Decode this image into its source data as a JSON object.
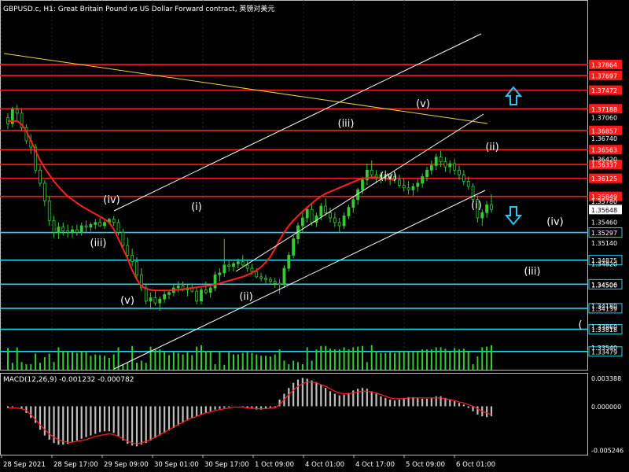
{
  "header": {
    "title": "GBPUSD.c, H1:  Great Britain Pound vs US Dollar Forward contract, 英镑对美元"
  },
  "colors": {
    "background": "#000000",
    "grid": "#3a3a3a",
    "candle": "#33cc33",
    "ma": "#ff2020",
    "resistance": "#ff1a1a",
    "support": "#1fd6f0",
    "channel": "#ffffff",
    "trendline": "#e8d24a",
    "histogram": "#bfbfbf",
    "signal": "#ff2020",
    "volume": "#33cc33",
    "arrow": "#2ec4ea",
    "axis_text": "#ffffff"
  },
  "chart_data": {
    "type": "candlestick",
    "symbol": "GBPUSD.c",
    "timeframe": "H1",
    "price_range": [
      1.332,
      1.3885
    ],
    "price_ticks": [
      "1.37060",
      "1.36740",
      "1.36420",
      "1.35780",
      "1.35460",
      "1.35140",
      "1.34820",
      "1.34500",
      "1.34180",
      "1.33860",
      "1.33540"
    ],
    "time_labels": [
      "28 Sep 2021",
      "28 Sep 17:00",
      "29 Sep 09:00",
      "30 Sep 01:00",
      "30 Sep 17:00",
      "1 Oct 09:00",
      "4 Oct 01:00",
      "4 Oct 17:00",
      "5 Oct 09:00",
      "6 Oct 01:00"
    ],
    "current_price": "1.35648",
    "resistance_levels": [
      {
        "price": 1.37864,
        "label": "1.37864"
      },
      {
        "price": 1.37697,
        "label": "1.37697"
      },
      {
        "price": 1.37472,
        "label": "1.37472"
      },
      {
        "price": 1.37188,
        "label": "1.37188"
      },
      {
        "price": 1.36857,
        "label": "1.36857"
      },
      {
        "price": 1.36563,
        "label": "1.36563"
      },
      {
        "price": 1.36337,
        "label": "1.36337"
      },
      {
        "price": 1.36125,
        "label": "1.36125"
      },
      {
        "price": 1.35849,
        "label": "1.35849"
      }
    ],
    "support_levels": [
      {
        "price": 1.35297,
        "label": "1.35297"
      },
      {
        "price": 1.34875,
        "label": "1.34875"
      },
      {
        "price": 1.34506,
        "label": "1.34506"
      },
      {
        "price": 1.34139,
        "label": "1.34139"
      },
      {
        "price": 1.33818,
        "label": "1.33818"
      },
      {
        "price": 1.33479,
        "label": "1.33479"
      }
    ],
    "wave_labels": [
      "(iv)",
      "(iii)",
      "(v)",
      "(i)",
      "(ii)",
      "(iii)",
      "(iv)",
      "(v)",
      "(ii)",
      "(i)",
      "(iv)",
      "(iii)",
      "("
    ],
    "candles": [
      [
        1.3705,
        1.3712,
        1.3688,
        1.3696
      ],
      [
        1.3696,
        1.3722,
        1.369,
        1.3718
      ],
      [
        1.3718,
        1.3725,
        1.37,
        1.3712
      ],
      [
        1.3712,
        1.3718,
        1.3685,
        1.369
      ],
      [
        1.369,
        1.3695,
        1.3665,
        1.367
      ],
      [
        1.367,
        1.368,
        1.365,
        1.366
      ],
      [
        1.366,
        1.3665,
        1.362,
        1.3625
      ],
      [
        1.3625,
        1.3632,
        1.36,
        1.3605
      ],
      [
        1.3605,
        1.361,
        1.357,
        1.3578
      ],
      [
        1.3578,
        1.3585,
        1.354,
        1.3548
      ],
      [
        1.3548,
        1.3555,
        1.3522,
        1.353
      ],
      [
        1.353,
        1.3545,
        1.352,
        1.3538
      ],
      [
        1.3538,
        1.3545,
        1.3525,
        1.3532
      ],
      [
        1.3532,
        1.3542,
        1.3522,
        1.353
      ],
      [
        1.353,
        1.354,
        1.3522,
        1.3534
      ],
      [
        1.3534,
        1.3542,
        1.3525,
        1.353
      ],
      [
        1.353,
        1.3545,
        1.3525,
        1.354
      ],
      [
        1.354,
        1.3548,
        1.353,
        1.3538
      ],
      [
        1.3538,
        1.3545,
        1.3532,
        1.3542
      ],
      [
        1.3542,
        1.355,
        1.3535,
        1.3545
      ],
      [
        1.3545,
        1.3552,
        1.3538,
        1.354
      ],
      [
        1.354,
        1.3548,
        1.3535,
        1.3545
      ],
      [
        1.3545,
        1.3552,
        1.3542,
        1.355
      ],
      [
        1.355,
        1.3555,
        1.354,
        1.3545
      ],
      [
        1.3545,
        1.355,
        1.3525,
        1.353
      ],
      [
        1.353,
        1.3535,
        1.3505,
        1.351
      ],
      [
        1.351,
        1.3522,
        1.349,
        1.3495
      ],
      [
        1.3495,
        1.3505,
        1.3478,
        1.3485
      ],
      [
        1.3485,
        1.3492,
        1.346,
        1.3465
      ],
      [
        1.3465,
        1.3475,
        1.344,
        1.3445
      ],
      [
        1.3445,
        1.3452,
        1.342,
        1.3425
      ],
      [
        1.3425,
        1.3438,
        1.3412,
        1.343
      ],
      [
        1.343,
        1.344,
        1.3418,
        1.3422
      ],
      [
        1.3422,
        1.3432,
        1.341,
        1.3428
      ],
      [
        1.3428,
        1.344,
        1.3422,
        1.3435
      ],
      [
        1.3435,
        1.3442,
        1.3428,
        1.3438
      ],
      [
        1.3438,
        1.345,
        1.3432,
        1.3445
      ],
      [
        1.3445,
        1.3455,
        1.3438,
        1.3448
      ],
      [
        1.3448,
        1.3455,
        1.344,
        1.3442
      ],
      [
        1.3442,
        1.345,
        1.3432,
        1.3445
      ],
      [
        1.3445,
        1.3452,
        1.3438,
        1.344
      ],
      [
        1.344,
        1.3446,
        1.342,
        1.3425
      ],
      [
        1.3425,
        1.3448,
        1.342,
        1.3442
      ],
      [
        1.3442,
        1.3455,
        1.3435,
        1.3438
      ],
      [
        1.3438,
        1.345,
        1.343,
        1.3445
      ],
      [
        1.3445,
        1.347,
        1.344,
        1.3465
      ],
      [
        1.3465,
        1.3475,
        1.3455,
        1.3468
      ],
      [
        1.3468,
        1.352,
        1.3462,
        1.348
      ],
      [
        1.348,
        1.3488,
        1.347,
        1.3478
      ],
      [
        1.3478,
        1.3485,
        1.347,
        1.3482
      ],
      [
        1.3482,
        1.349,
        1.3475,
        1.3485
      ],
      [
        1.3485,
        1.3495,
        1.3478,
        1.348
      ],
      [
        1.348,
        1.3488,
        1.347,
        1.3475
      ],
      [
        1.3475,
        1.3482,
        1.3465,
        1.347
      ],
      [
        1.347,
        1.3475,
        1.346,
        1.3462
      ],
      [
        1.3462,
        1.3468,
        1.3455,
        1.346
      ],
      [
        1.346,
        1.3465,
        1.3452,
        1.3458
      ],
      [
        1.3458,
        1.3462,
        1.345,
        1.3455
      ],
      [
        1.3455,
        1.346,
        1.3445,
        1.3452
      ],
      [
        1.3452,
        1.3458,
        1.3436,
        1.345
      ],
      [
        1.345,
        1.348,
        1.3445,
        1.3475
      ],
      [
        1.3475,
        1.35,
        1.347,
        1.3495
      ],
      [
        1.3495,
        1.3525,
        1.349,
        1.352
      ],
      [
        1.352,
        1.3545,
        1.3512,
        1.354
      ],
      [
        1.354,
        1.356,
        1.353,
        1.3552
      ],
      [
        1.3552,
        1.357,
        1.3545,
        1.3565
      ],
      [
        1.3565,
        1.3575,
        1.354,
        1.3545
      ],
      [
        1.3545,
        1.356,
        1.3538,
        1.3555
      ],
      [
        1.3555,
        1.3575,
        1.3548,
        1.357
      ],
      [
        1.357,
        1.3582,
        1.3555,
        1.356
      ],
      [
        1.356,
        1.3568,
        1.3545,
        1.3552
      ],
      [
        1.3552,
        1.356,
        1.3538,
        1.3545
      ],
      [
        1.3545,
        1.3552,
        1.353,
        1.354
      ],
      [
        1.354,
        1.356,
        1.3535,
        1.3555
      ],
      [
        1.3555,
        1.3572,
        1.355,
        1.3568
      ],
      [
        1.3568,
        1.3585,
        1.356,
        1.358
      ],
      [
        1.358,
        1.3598,
        1.3572,
        1.3595
      ],
      [
        1.3595,
        1.3615,
        1.3588,
        1.361
      ],
      [
        1.361,
        1.3635,
        1.3602,
        1.3625
      ],
      [
        1.3625,
        1.364,
        1.3612,
        1.3618
      ],
      [
        1.3618,
        1.3625,
        1.3605,
        1.3612
      ],
      [
        1.3612,
        1.3622,
        1.3605,
        1.3618
      ],
      [
        1.3618,
        1.3625,
        1.3608,
        1.3612
      ],
      [
        1.3612,
        1.362,
        1.3602,
        1.3615
      ],
      [
        1.3615,
        1.3622,
        1.3605,
        1.361
      ],
      [
        1.361,
        1.3618,
        1.3598,
        1.3602
      ],
      [
        1.3602,
        1.3612,
        1.3592,
        1.3598
      ],
      [
        1.3598,
        1.3608,
        1.3588,
        1.3595
      ],
      [
        1.3595,
        1.3605,
        1.3586,
        1.36
      ],
      [
        1.36,
        1.3612,
        1.3592,
        1.3605
      ],
      [
        1.3605,
        1.362,
        1.3598,
        1.3615
      ],
      [
        1.3615,
        1.363,
        1.3608,
        1.3625
      ],
      [
        1.3625,
        1.364,
        1.3618,
        1.3632
      ],
      [
        1.3632,
        1.365,
        1.3625,
        1.3645
      ],
      [
        1.3645,
        1.3655,
        1.363,
        1.3638
      ],
      [
        1.3638,
        1.3645,
        1.3622,
        1.363
      ],
      [
        1.363,
        1.364,
        1.362,
        1.3635
      ],
      [
        1.3635,
        1.3642,
        1.3618,
        1.3625
      ],
      [
        1.3625,
        1.3632,
        1.361,
        1.3618
      ],
      [
        1.3618,
        1.3625,
        1.3602,
        1.3608
      ],
      [
        1.3608,
        1.3615,
        1.3595,
        1.36
      ],
      [
        1.36,
        1.3605,
        1.3575,
        1.358
      ],
      [
        1.358,
        1.3586,
        1.3545,
        1.3552
      ],
      [
        1.3552,
        1.3565,
        1.354,
        1.356
      ],
      [
        1.356,
        1.3578,
        1.3552,
        1.3572
      ],
      [
        1.3572,
        1.3588,
        1.356,
        1.3565
      ]
    ],
    "ma_values": [
      1.37,
      1.37,
      1.37,
      1.3695,
      1.3685,
      1.367,
      1.3655,
      1.364,
      1.3628,
      1.3618,
      1.3608,
      1.36,
      1.3592,
      1.3585,
      1.358,
      1.3575,
      1.357,
      1.3566,
      1.3562,
      1.3558,
      1.3554,
      1.355,
      1.3545,
      1.3535,
      1.352,
      1.3505,
      1.349,
      1.3472,
      1.3458,
      1.3448,
      1.3444,
      1.3442,
      1.3441,
      1.3441,
      1.3441,
      1.3441,
      1.3442,
      1.3442,
      1.3443,
      1.3444,
      1.3445,
      1.3446,
      1.3447,
      1.3448,
      1.3449,
      1.345,
      1.3452,
      1.3454,
      1.3456,
      1.3458,
      1.346,
      1.3462,
      1.3465,
      1.3468,
      1.3472,
      1.3477,
      1.3484,
      1.3493,
      1.3505,
      1.3518,
      1.353,
      1.354,
      1.3548,
      1.3555,
      1.3562,
      1.3568,
      1.3574,
      1.358,
      1.3585,
      1.3589,
      1.3592,
      1.3595,
      1.3598,
      1.3601,
      1.3604,
      1.3607,
      1.361,
      1.3612,
      1.3613,
      1.3614,
      1.3614,
      1.3613,
      1.3612,
      1.3611,
      1.361
    ],
    "macd": {
      "label": "MACD(12,26,9) -0.001232 -0.000782",
      "scale_labels": [
        "0.003388",
        "0.000000",
        "-0.005246"
      ],
      "range": [
        -0.0058,
        0.004
      ],
      "histogram": [
        -0.0002,
        -0.0001,
        0.0,
        -0.0003,
        -0.0008,
        -0.0014,
        -0.002,
        -0.0028,
        -0.0035,
        -0.004,
        -0.0044,
        -0.0046,
        -0.0046,
        -0.0045,
        -0.0043,
        -0.0041,
        -0.0039,
        -0.0037,
        -0.0035,
        -0.0033,
        -0.0031,
        -0.003,
        -0.003,
        -0.0032,
        -0.0036,
        -0.0041,
        -0.0045,
        -0.0047,
        -0.0048,
        -0.0046,
        -0.0044,
        -0.0041,
        -0.0038,
        -0.0035,
        -0.0032,
        -0.0029,
        -0.0026,
        -0.0023,
        -0.002,
        -0.0017,
        -0.0014,
        -0.0012,
        -0.001,
        -0.0008,
        -0.0006,
        -0.0004,
        -0.0003,
        -0.0002,
        -0.0001,
        0.0,
        0.0,
        -0.0001,
        -0.0002,
        -0.0003,
        -0.0004,
        -0.0004,
        -0.0003,
        -0.0002,
        -0.0001,
        0.0008,
        0.0015,
        0.0022,
        0.0028,
        0.0032,
        0.0034,
        0.0033,
        0.0031,
        0.0029,
        0.0026,
        0.0022,
        0.0018,
        0.0015,
        0.0013,
        0.0014,
        0.0016,
        0.0019,
        0.0021,
        0.0022,
        0.0021,
        0.0018,
        0.0015,
        0.0012,
        0.001,
        0.0008,
        0.0007,
        0.0008,
        0.001,
        0.0011,
        0.0011,
        0.001,
        0.0009,
        0.0009,
        0.001,
        0.0012,
        0.0012,
        0.001,
        0.0008,
        0.0006,
        0.0004,
        0.0002,
        -0.0002,
        -0.0006,
        -0.001,
        -0.0012,
        -0.0013,
        -0.0012
      ],
      "signal": [
        -0.0002,
        -0.0002,
        -0.0002,
        -0.0003,
        -0.0005,
        -0.001,
        -0.0016,
        -0.0022,
        -0.0028,
        -0.0033,
        -0.0037,
        -0.004,
        -0.0042,
        -0.0043,
        -0.0043,
        -0.0042,
        -0.0041,
        -0.004,
        -0.0038,
        -0.0036,
        -0.0035,
        -0.0034,
        -0.0033,
        -0.0034,
        -0.0036,
        -0.0039,
        -0.0042,
        -0.0044,
        -0.0045,
        -0.0044,
        -0.0042,
        -0.004,
        -0.0037,
        -0.0034,
        -0.0031,
        -0.0028,
        -0.0025,
        -0.0022,
        -0.0019,
        -0.0016,
        -0.0014,
        -0.0012,
        -0.001,
        -0.0008,
        -0.0007,
        -0.0005,
        -0.0004,
        -0.0003,
        -0.0002,
        -0.0001,
        -0.0001,
        -0.0001,
        -0.0002,
        -0.0002,
        -0.0003,
        -0.0003,
        -0.0003,
        -0.0002,
        -0.0002,
        0.0002,
        0.0008,
        0.0014,
        0.0019,
        0.0024,
        0.0027,
        0.0029,
        0.0029,
        0.0028,
        0.0026,
        0.0024,
        0.0021,
        0.0018,
        0.0016,
        0.0015,
        0.0015,
        0.0016,
        0.0017,
        0.0018,
        0.0018,
        0.0017,
        0.0016,
        0.0014,
        0.0012,
        0.001,
        0.0009,
        0.0009,
        0.0009,
        0.001,
        0.001,
        0.001,
        0.001,
        0.001,
        0.001,
        0.001,
        0.001,
        0.0009,
        0.0008,
        0.0007,
        0.0005,
        0.0004,
        0.0002,
        0.0,
        -0.0003,
        -0.0006,
        -0.0008,
        -0.001
      ]
    }
  }
}
